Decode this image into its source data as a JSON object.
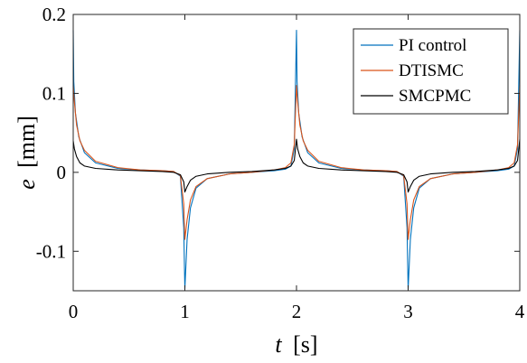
{
  "chart_data": {
    "type": "line",
    "title": "",
    "xlabel": {
      "symbol": "t",
      "unit": "[s]"
    },
    "ylabel": {
      "symbol": "e",
      "unit": "[mm]"
    },
    "xlim": [
      0,
      4
    ],
    "ylim": [
      -0.15,
      0.2
    ],
    "xticks": [
      0,
      1,
      2,
      3,
      4
    ],
    "xtick_labels": [
      "0",
      "1",
      "2",
      "3",
      "4"
    ],
    "yticks": [
      -0.1,
      0,
      0.1,
      0.2
    ],
    "ytick_labels": [
      "-0.1",
      "0",
      "0.1",
      "0.2"
    ],
    "grid": false,
    "legend_position": "top-right",
    "series": [
      {
        "name": "PI control",
        "color": "#0072BD",
        "x": [
          0,
          0.005,
          0.02,
          0.05,
          0.1,
          0.2,
          0.4,
          0.6,
          0.8,
          0.9,
          0.96,
          0.99,
          1.0,
          1.02,
          1.05,
          1.1,
          1.2,
          1.4,
          1.6,
          1.8,
          1.9,
          1.95,
          1.98,
          2.0,
          2.005,
          2.02,
          2.05,
          2.1,
          2.2,
          2.4,
          2.6,
          2.8,
          2.9,
          2.96,
          2.99,
          3.0,
          3.02,
          3.05,
          3.1,
          3.2,
          3.4,
          3.6,
          3.8,
          3.9,
          3.95,
          3.98,
          4.0
        ],
        "y": [
          0.18,
          0.115,
          0.075,
          0.045,
          0.025,
          0.012,
          0.005,
          0.003,
          0.002,
          0.001,
          -0.005,
          -0.07,
          -0.148,
          -0.085,
          -0.045,
          -0.02,
          -0.008,
          -0.002,
          0.0,
          0.002,
          0.004,
          0.008,
          0.03,
          0.18,
          0.115,
          0.075,
          0.045,
          0.025,
          0.012,
          0.005,
          0.003,
          0.002,
          0.001,
          -0.005,
          -0.07,
          -0.148,
          -0.085,
          -0.045,
          -0.02,
          -0.008,
          -0.002,
          0.0,
          0.002,
          0.004,
          0.008,
          0.03,
          0.18
        ]
      },
      {
        "name": "DTISMC",
        "color": "#D95319",
        "x": [
          0,
          0.01,
          0.03,
          0.06,
          0.1,
          0.2,
          0.4,
          0.6,
          0.8,
          0.9,
          0.96,
          0.99,
          1.0,
          1.02,
          1.05,
          1.1,
          1.2,
          1.4,
          1.6,
          1.8,
          1.9,
          1.95,
          1.98,
          2.0,
          2.01,
          2.03,
          2.06,
          2.1,
          2.2,
          2.4,
          2.6,
          2.8,
          2.9,
          2.96,
          2.99,
          3.0,
          3.02,
          3.05,
          3.1,
          3.2,
          3.4,
          3.6,
          3.8,
          3.9,
          3.95,
          3.98,
          4.0
        ],
        "y": [
          0.11,
          0.09,
          0.06,
          0.04,
          0.028,
          0.014,
          0.006,
          0.003,
          0.002,
          0.001,
          -0.004,
          -0.04,
          -0.085,
          -0.06,
          -0.035,
          -0.018,
          -0.008,
          -0.002,
          0.0,
          0.003,
          0.006,
          0.012,
          0.035,
          0.11,
          0.09,
          0.06,
          0.04,
          0.028,
          0.014,
          0.006,
          0.003,
          0.002,
          0.001,
          -0.004,
          -0.04,
          -0.085,
          -0.06,
          -0.035,
          -0.018,
          -0.008,
          -0.002,
          0.0,
          0.003,
          0.006,
          0.012,
          0.035,
          0.11
        ]
      },
      {
        "name": "SMCPMC",
        "color": "#000000",
        "x": [
          0,
          0.01,
          0.03,
          0.06,
          0.1,
          0.2,
          0.4,
          0.6,
          0.8,
          0.9,
          0.96,
          0.99,
          1.0,
          1.02,
          1.05,
          1.1,
          1.2,
          1.4,
          1.6,
          1.8,
          1.9,
          1.95,
          1.98,
          2.0,
          2.01,
          2.03,
          2.06,
          2.1,
          2.2,
          2.4,
          2.6,
          2.8,
          2.9,
          2.96,
          2.99,
          3.0,
          3.02,
          3.05,
          3.1,
          3.2,
          3.4,
          3.6,
          3.8,
          3.9,
          3.95,
          3.98,
          4.0
        ],
        "y": [
          0.04,
          0.03,
          0.02,
          0.012,
          0.008,
          0.005,
          0.003,
          0.002,
          0.001,
          0.0,
          -0.003,
          -0.012,
          -0.025,
          -0.018,
          -0.01,
          -0.005,
          -0.002,
          0.0,
          0.001,
          0.003,
          0.005,
          0.008,
          0.015,
          0.042,
          0.03,
          0.02,
          0.012,
          0.008,
          0.005,
          0.003,
          0.002,
          0.001,
          0.0,
          -0.003,
          -0.012,
          -0.025,
          -0.018,
          -0.01,
          -0.005,
          -0.002,
          0.0,
          0.001,
          0.003,
          0.005,
          0.008,
          0.015,
          0.042
        ]
      }
    ]
  }
}
